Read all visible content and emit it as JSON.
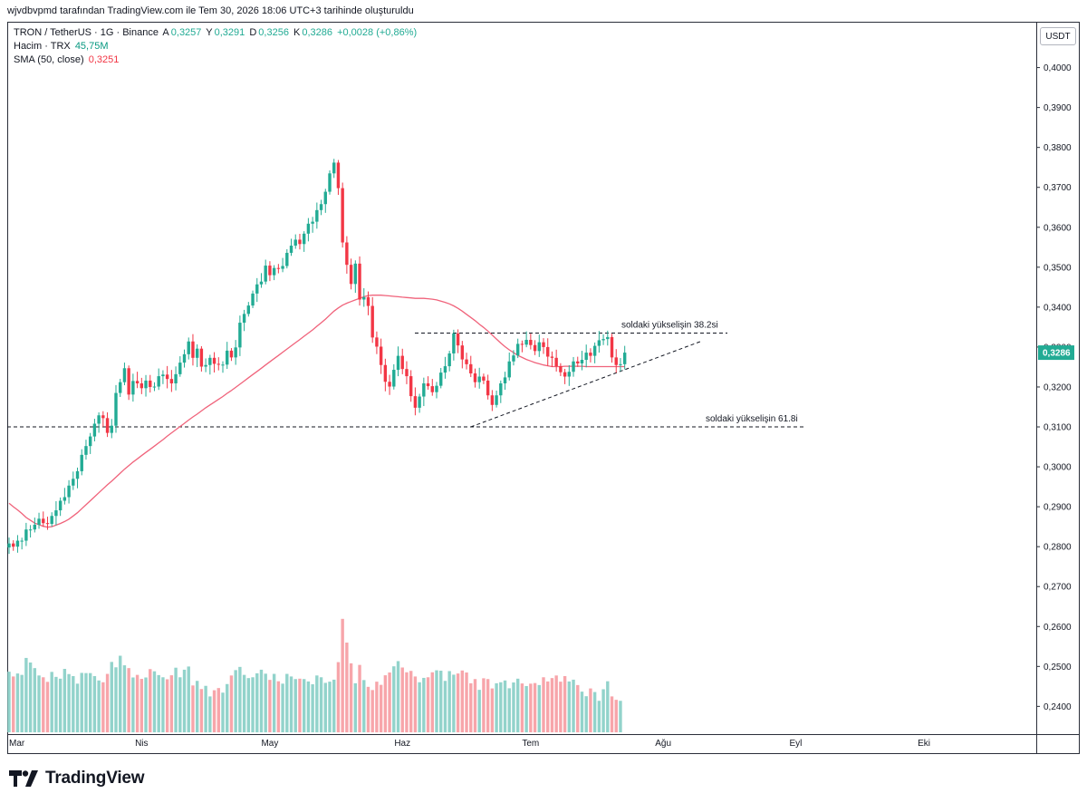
{
  "header": {
    "title": "wjvdbvpmd tarafından TradingView.com ile Tem 30, 2026 18:06 UTC+3 tarihinde oluşturuldu"
  },
  "legend": {
    "symbol": "TRON / TetherUS · 1G · Binance",
    "open_label": "A",
    "open": "0,3257",
    "high_label": "Y",
    "high": "0,3291",
    "low_label": "D",
    "low": "0,3256",
    "close_label": "K",
    "close": "0,3286",
    "change": "+0,0028 (+0,86%)",
    "volume_label": "Hacim · TRX",
    "volume": "45,75M",
    "sma_label": "SMA (50, close)",
    "sma": "0,3251"
  },
  "price_axis": {
    "currency": "USDT",
    "current_price": "0,3286",
    "colors": {
      "current_price_bg": "#22ab94"
    }
  },
  "footer": {
    "brand": "TradingView"
  },
  "chart_data": {
    "type": "candlestick",
    "x_labels": [
      "Mar",
      "Nis",
      "May",
      "Haz",
      "Tem",
      "Ağu",
      "Eyl",
      "Eki"
    ],
    "y_ticks": [
      "0,4000",
      "0,3900",
      "0,3800",
      "0,3700",
      "0,3600",
      "0,3500",
      "0,3400",
      "0,3300",
      "0,3200",
      "0,3100",
      "0,3000",
      "0,2900",
      "0,2800",
      "0,2700",
      "0,2600",
      "0,2500",
      "0,2400"
    ],
    "ylim": [
      0.2335,
      0.4108
    ],
    "x_start_date": "2026-03-01",
    "colors": {
      "up": "#22ab94",
      "down": "#f23645",
      "volume_up": "#92d3cb",
      "volume_down": "#f7a5aa",
      "sma": "#f0637b"
    },
    "annotations": [
      {
        "text": "soldaki yükselişin 38.2si",
        "price": 0.3335,
        "style": "dashed"
      },
      {
        "text": "soldaki yükselişin 61.8i",
        "price": 0.31,
        "style": "dashed"
      }
    ],
    "trendline": {
      "from": {
        "date": "2026-06-17",
        "price": 0.31
      },
      "to": {
        "date": "2026-08-10",
        "price": 0.3315
      }
    },
    "close": [
      0.2808,
      0.28,
      0.2815,
      0.2815,
      0.2843,
      0.2843,
      0.2855,
      0.287,
      0.2859,
      0.2857,
      0.2877,
      0.2891,
      0.2915,
      0.2924,
      0.2953,
      0.297,
      0.2989,
      0.303,
      0.3052,
      0.3076,
      0.3108,
      0.3129,
      0.3122,
      0.3085,
      0.3103,
      0.3185,
      0.3212,
      0.3247,
      0.3181,
      0.3215,
      0.3209,
      0.3197,
      0.3216,
      0.32,
      0.3201,
      0.3227,
      0.3231,
      0.322,
      0.3209,
      0.3232,
      0.3261,
      0.3282,
      0.3314,
      0.3273,
      0.3296,
      0.3251,
      0.3255,
      0.3273,
      0.3258,
      0.3256,
      0.3256,
      0.3291,
      0.3274,
      0.3299,
      0.3361,
      0.3383,
      0.3404,
      0.3434,
      0.3457,
      0.3464,
      0.3504,
      0.348,
      0.3498,
      0.3496,
      0.3503,
      0.3536,
      0.3554,
      0.3569,
      0.3558,
      0.3584,
      0.3609,
      0.3614,
      0.3643,
      0.3658,
      0.3689,
      0.3735,
      0.3762,
      0.3698,
      0.3562,
      0.3506,
      0.3458,
      0.3509,
      0.3419,
      0.3425,
      0.3403,
      0.3324,
      0.3301,
      0.3255,
      0.3213,
      0.3201,
      0.3243,
      0.3278,
      0.3245,
      0.3227,
      0.3177,
      0.3148,
      0.3176,
      0.3209,
      0.3202,
      0.3187,
      0.3203,
      0.3236,
      0.3252,
      0.3284,
      0.3334,
      0.3304,
      0.3269,
      0.3257,
      0.3234,
      0.3212,
      0.3226,
      0.3216,
      0.3179,
      0.3155,
      0.3179,
      0.3209,
      0.3224,
      0.3264,
      0.3279,
      0.3308,
      0.3306,
      0.3318,
      0.3305,
      0.329,
      0.3312,
      0.33,
      0.3276,
      0.3273,
      0.3252,
      0.3237,
      0.3226,
      0.3238,
      0.3264,
      0.3259,
      0.3268,
      0.3286,
      0.3278,
      0.3303,
      0.3317,
      0.332,
      0.3325,
      0.3274,
      0.3255,
      0.3257,
      0.3286
    ],
    "volume_millions": [
      60.4,
      58.0,
      59.5,
      58.8,
      67.3,
      65.0,
      62.2,
      58.5,
      57.6,
      55.3,
      60.3,
      57.8,
      56.9,
      61.8,
      59.2,
      58.2,
      54.4,
      59.8,
      59.7,
      59.7,
      58.2,
      56.0,
      55.1,
      59.3,
      65.3,
      62.6,
      68.4,
      63.6,
      62.2,
      57.5,
      58.8,
      56.8,
      57.5,
      61.7,
      60.6,
      58.7,
      57.6,
      56.6,
      58.6,
      62.4,
      57.6,
      61.4,
      63.0,
      53.5,
      55.8,
      51.7,
      53.3,
      48.0,
      51.1,
      52.2,
      49.9,
      54.2,
      58.5,
      61.2,
      62.8,
      58.8,
      57.2,
      57.6,
      59.6,
      61.4,
      59.4,
      56.3,
      59.3,
      55.6,
      54.4,
      59.3,
      58.0,
      56.7,
      56.9,
      56.7,
      55.5,
      54.1,
      58.5,
      57.6,
      54.8,
      55.4,
      56.4,
      65.2,
      86.9,
      75.0,
      64.6,
      54.6,
      63.8,
      56.2,
      52.8,
      51.2,
      55.4,
      53.8,
      58.6,
      60.0,
      63.1,
      65.7,
      62.5,
      60.1,
      60.8,
      58.0,
      55.1,
      57.3,
      57.6,
      60.1,
      61.1,
      60.9,
      55.8,
      60.7,
      58.9,
      59.5,
      61.0,
      60.0,
      54.6,
      56.7,
      51.3,
      57.1,
      56.7,
      52.0,
      54.6,
      55.1,
      56.0,
      52.1,
      55.0,
      56.9,
      54.5,
      53.2,
      54.4,
      54.7,
      53.7,
      57.6,
      55.5,
      57.2,
      58.5,
      55.4,
      58.2,
      55.5,
      56.4,
      53.7,
      50.4,
      48.1,
      52.0,
      50.2,
      45.8,
      51.6,
      55.6,
      48.0,
      46.3,
      45.8
    ],
    "sma50": [
      0.2909,
      0.29,
      0.2892,
      0.2883,
      0.2873,
      0.2866,
      0.2859,
      0.2855,
      0.2851,
      0.2849,
      0.285,
      0.2854,
      0.2858,
      0.2863,
      0.2869,
      0.2877,
      0.2885,
      0.2895,
      0.2905,
      0.2915,
      0.2925,
      0.2935,
      0.2945,
      0.2955,
      0.2964,
      0.2974,
      0.2984,
      0.2994,
      0.3003,
      0.3012,
      0.302,
      0.3028,
      0.3036,
      0.3044,
      0.3052,
      0.306,
      0.3068,
      0.3077,
      0.3085,
      0.3093,
      0.3101,
      0.3109,
      0.3117,
      0.3125,
      0.3132,
      0.314,
      0.3148,
      0.3155,
      0.3162,
      0.3169,
      0.3176,
      0.3184,
      0.3191,
      0.3199,
      0.3207,
      0.3215,
      0.3223,
      0.3231,
      0.3239,
      0.3247,
      0.3255,
      0.3263,
      0.3271,
      0.3279,
      0.3287,
      0.3295,
      0.3303,
      0.3311,
      0.3319,
      0.3327,
      0.3335,
      0.3343,
      0.3352,
      0.3361,
      0.337,
      0.338,
      0.339,
      0.3398,
      0.3405,
      0.341,
      0.3414,
      0.3418,
      0.3422,
      0.3426,
      0.3429,
      0.343,
      0.343,
      0.343,
      0.3429,
      0.3428,
      0.3427,
      0.3426,
      0.3425,
      0.3424,
      0.3423,
      0.3422,
      0.3422,
      0.3422,
      0.3421,
      0.342,
      0.3418,
      0.3415,
      0.3412,
      0.3408,
      0.3403,
      0.3397,
      0.339,
      0.3382,
      0.3374,
      0.3366,
      0.3357,
      0.3349,
      0.334,
      0.333,
      0.332,
      0.331,
      0.3301,
      0.3293,
      0.3286,
      0.3279,
      0.3274,
      0.3269,
      0.3265,
      0.3261,
      0.3258,
      0.3255,
      0.3253,
      0.3251,
      0.3251,
      0.3251,
      0.3252,
      0.3252,
      0.3252,
      0.3252,
      0.3252,
      0.3251,
      0.3251,
      0.3251,
      0.3251,
      0.3251,
      0.3251,
      0.3251,
      0.3251,
      0.3251,
      0.3251
    ]
  }
}
